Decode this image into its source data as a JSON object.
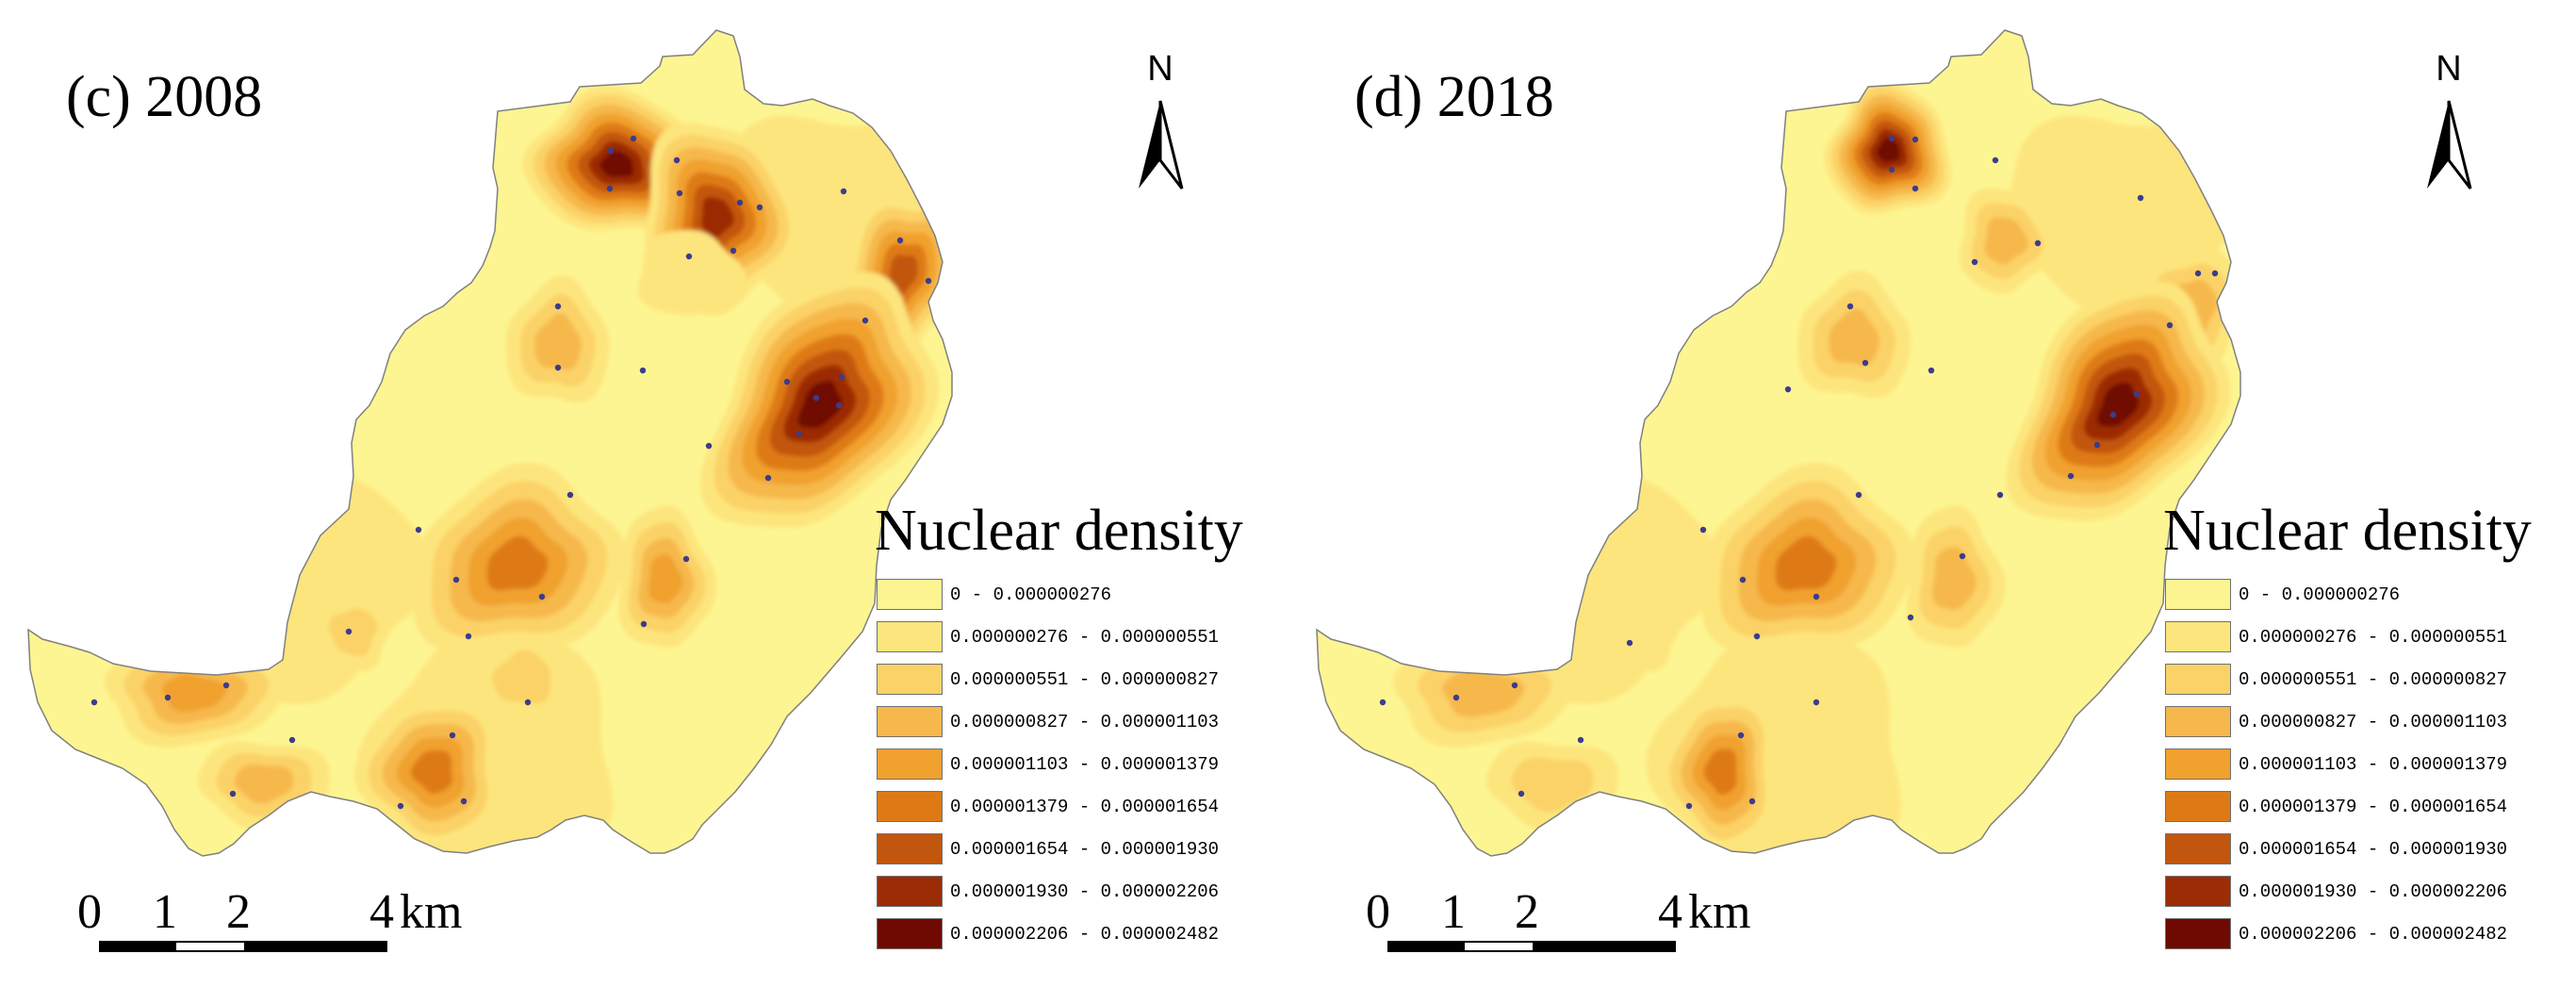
{
  "legend": {
    "title": "Nuclear density",
    "classes": [
      {
        "label": "0 - 0.000000276",
        "color": "#fdf592"
      },
      {
        "label": "0.000000276 - 0.000000551",
        "color": "#fde57d"
      },
      {
        "label": "0.000000551 - 0.000000827",
        "color": "#fbd267"
      },
      {
        "label": "0.000000827 - 0.000001103",
        "color": "#f6b84c"
      },
      {
        "label": "0.000001103 - 0.000001379",
        "color": "#f0a12e"
      },
      {
        "label": "0.000001379 - 0.000001654",
        "color": "#de7a16"
      },
      {
        "label": "0.000001654 - 0.000001930",
        "color": "#c2560e"
      },
      {
        "label": "0.000001930 - 0.000002206",
        "color": "#9c2c06"
      },
      {
        "label": "0.000002206 - 0.000002482",
        "color": "#6f0a02"
      }
    ]
  },
  "north_label": "N",
  "scale_bar": {
    "ticks": [
      "0",
      "1",
      "2",
      "4"
    ],
    "unit": "km"
  },
  "panels": [
    {
      "title": "(c) 2008"
    },
    {
      "title": "(d) 2018"
    }
  ],
  "colors": {
    "point": "#3c3c8c",
    "boundary": "#808080",
    "background": "#ffffff"
  }
}
